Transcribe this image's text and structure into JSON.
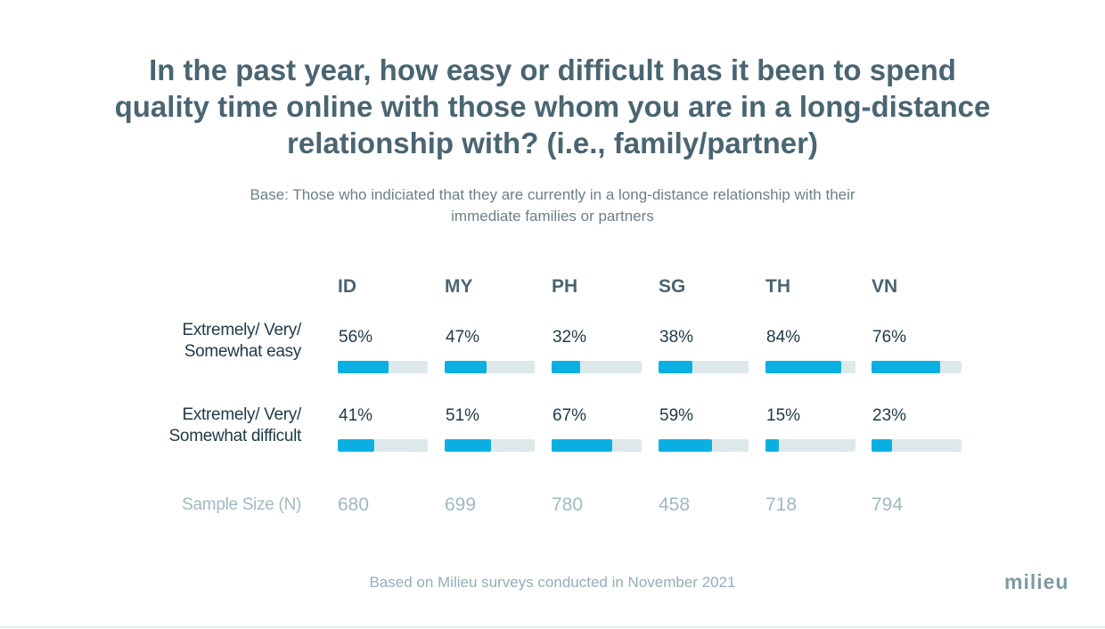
{
  "chart_data": {
    "type": "bar",
    "title_lines": [
      "In the past year, how easy or difficult has it been to spend",
      "quality time online with those whom you are in a long-distance",
      "relationship with? (i.e., family/partner)"
    ],
    "subtitle_lines": [
      "Base: Those who indiciated that they are currently in a long-distance relationship with their",
      "immediate families or partners"
    ],
    "categories": [
      "ID",
      "MY",
      "PH",
      "SG",
      "TH",
      "VN"
    ],
    "series": [
      {
        "name_lines": [
          "Extremely/ Very/",
          "Somewhat easy"
        ],
        "values": [
          56,
          47,
          32,
          38,
          84,
          76
        ],
        "labels": [
          "56%",
          "47%",
          "32%",
          "38%",
          "84%",
          "76%"
        ]
      },
      {
        "name_lines": [
          "Extremely/ Very/",
          "Somewhat difficult"
        ],
        "values": [
          41,
          51,
          67,
          59,
          15,
          23
        ],
        "labels": [
          "41%",
          "51%",
          "67%",
          "59%",
          "15%",
          "23%"
        ]
      }
    ],
    "sample_size_label": "Sample Size (N)",
    "sample_sizes": [
      "680",
      "699",
      "780",
      "458",
      "718",
      "794"
    ],
    "ylim": [
      0,
      100
    ]
  },
  "footer": "Based on Milieu surveys conducted in November 2021",
  "logo": "milieu",
  "colors": {
    "bar_fill": "#0bb0e2",
    "bar_track": "#dde8ea"
  }
}
